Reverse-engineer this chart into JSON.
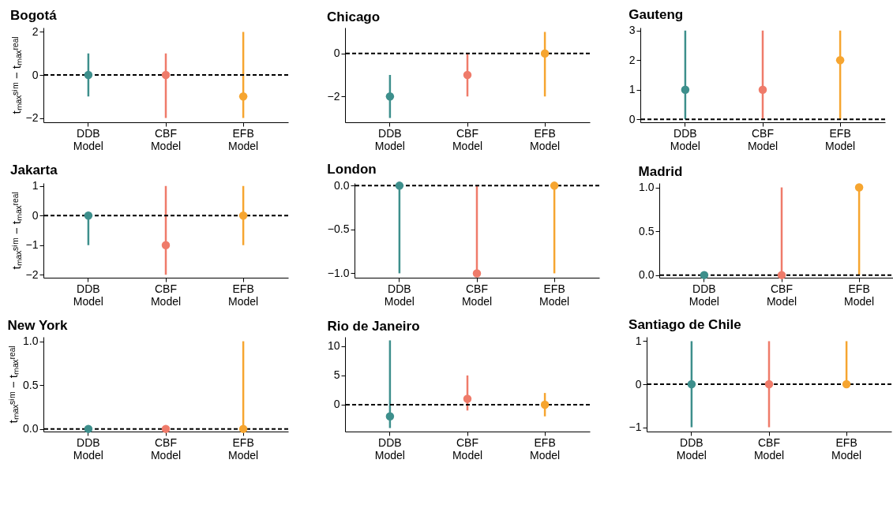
{
  "chart_data": [
    {
      "type": "scatter",
      "title": "Bogotá",
      "ylabel": "tₘₐₓˢⁱᵐ − tₘₐₓʳᵉᵃˡ",
      "categories": [
        "DDB Model",
        "CBF Model",
        "EFB Model"
      ],
      "values": [
        0,
        0,
        -1
      ],
      "errors": [
        [
          -1,
          1
        ],
        [
          -2,
          1
        ],
        [
          -2,
          2
        ]
      ],
      "colors": [
        "#3d8f8c",
        "#ef7b6a",
        "#f6a530"
      ],
      "ylim": [
        -2.2,
        2.2
      ],
      "yticks": [
        -2,
        0,
        2
      ],
      "ref_lines": [
        {
          "axis": "y",
          "value": 0,
          "line_style": "dashed",
          "color": "#000000"
        }
      ],
      "grid": false
    },
    {
      "type": "scatter",
      "title": "Chicago",
      "categories": [
        "DDB Model",
        "CBF Model",
        "EFB Model"
      ],
      "values": [
        -2,
        -1,
        0
      ],
      "errors": [
        [
          -3,
          -1
        ],
        [
          -2,
          0
        ],
        [
          -2,
          1
        ]
      ],
      "colors": [
        "#3d8f8c",
        "#ef7b6a",
        "#f6a530"
      ],
      "ylim": [
        -3.2,
        1.2
      ],
      "yticks": [
        -2,
        0
      ],
      "ref_lines": [
        {
          "axis": "y",
          "value": 0,
          "line_style": "dashed",
          "color": "#000000"
        }
      ],
      "grid": false
    },
    {
      "type": "scatter",
      "title": "Gauteng",
      "categories": [
        "DDB Model",
        "CBF Model",
        "EFB Model"
      ],
      "values": [
        1,
        1,
        2
      ],
      "errors": [
        [
          0,
          3
        ],
        [
          0,
          3
        ],
        [
          0,
          3
        ]
      ],
      "colors": [
        "#3d8f8c",
        "#ef7b6a",
        "#f6a530"
      ],
      "ylim": [
        -0.1,
        3.1
      ],
      "yticks": [
        0,
        1,
        2,
        3
      ],
      "ref_lines": [
        {
          "axis": "y",
          "value": 0,
          "line_style": "dashed",
          "color": "#000000"
        }
      ],
      "grid": false
    },
    {
      "type": "scatter",
      "title": "Jakarta",
      "ylabel": "tₘₐₓˢⁱᵐ − tₘₐₓʳᵉᵃˡ",
      "categories": [
        "DDB Model",
        "CBF Model",
        "EFB Model"
      ],
      "values": [
        0,
        -1,
        0
      ],
      "errors": [
        [
          -1,
          0
        ],
        [
          -2,
          1
        ],
        [
          -1,
          1
        ]
      ],
      "colors": [
        "#3d8f8c",
        "#ef7b6a",
        "#f6a530"
      ],
      "ylim": [
        -2.1,
        1.1
      ],
      "yticks": [
        -2,
        -1,
        0,
        1
      ],
      "ref_lines": [
        {
          "axis": "y",
          "value": 0,
          "line_style": "dashed",
          "color": "#000000"
        }
      ],
      "grid": false
    },
    {
      "type": "scatter",
      "title": "London",
      "categories": [
        "DDB Model",
        "CBF Model",
        "EFB Model"
      ],
      "values": [
        0,
        -1,
        0
      ],
      "errors": [
        [
          -1,
          0
        ],
        [
          -1,
          0
        ],
        [
          -1,
          0
        ]
      ],
      "colors": [
        "#3d8f8c",
        "#ef7b6a",
        "#f6a530"
      ],
      "ylim": [
        -1.05,
        0.03
      ],
      "yticks": [
        {
          "value": -1,
          "label": "−1.0"
        },
        {
          "value": -0.5,
          "label": "−0.5"
        },
        {
          "value": 0,
          "label": "0.0"
        }
      ],
      "ref_lines": [
        {
          "axis": "y",
          "value": 0,
          "line_style": "dashed",
          "color": "#000000"
        }
      ],
      "grid": false
    },
    {
      "type": "scatter",
      "title": "Madrid",
      "categories": [
        "DDB Model",
        "CBF Model",
        "EFB Model"
      ],
      "values": [
        0,
        0,
        1
      ],
      "errors": [
        null,
        [
          0,
          1
        ],
        [
          0,
          1
        ]
      ],
      "colors": [
        "#3d8f8c",
        "#ef7b6a",
        "#f6a530"
      ],
      "ylim": [
        -0.03,
        1.05
      ],
      "yticks": [
        {
          "value": 0,
          "label": "0.0"
        },
        {
          "value": 0.5,
          "label": "0.5"
        },
        {
          "value": 1,
          "label": "1.0"
        }
      ],
      "ref_lines": [
        {
          "axis": "y",
          "value": 0,
          "line_style": "dashed",
          "color": "#000000"
        }
      ],
      "grid": false
    },
    {
      "type": "scatter",
      "title": "New York",
      "ylabel": "tₘₐₓˢⁱᵐ − tₘₐₓʳᵉᵃˡ",
      "categories": [
        "DDB Model",
        "CBF Model",
        "EFB Model"
      ],
      "values": [
        0,
        0,
        0
      ],
      "errors": [
        null,
        null,
        [
          0,
          1
        ]
      ],
      "colors": [
        "#3d8f8c",
        "#ef7b6a",
        "#f6a530"
      ],
      "ylim": [
        -0.03,
        1.05
      ],
      "yticks": [
        {
          "value": 0,
          "label": "0.0"
        },
        {
          "value": 0.5,
          "label": "0.5"
        },
        {
          "value": 1,
          "label": "1.0"
        }
      ],
      "ref_lines": [
        {
          "axis": "y",
          "value": 0,
          "line_style": "dashed",
          "color": "#000000"
        }
      ],
      "grid": false
    },
    {
      "type": "scatter",
      "title": "Rio de Janeiro",
      "categories": [
        "DDB Model",
        "CBF Model",
        "EFB Model"
      ],
      "values": [
        -2,
        1,
        0
      ],
      "errors": [
        [
          -4,
          11
        ],
        [
          -1,
          5
        ],
        [
          -2,
          2
        ]
      ],
      "colors": [
        "#3d8f8c",
        "#ef7b6a",
        "#f6a530"
      ],
      "ylim": [
        -4.6,
        11.6
      ],
      "yticks": [
        0,
        5,
        10
      ],
      "ref_lines": [
        {
          "axis": "y",
          "value": 0,
          "line_style": "dashed",
          "color": "#000000"
        }
      ],
      "grid": false
    },
    {
      "type": "scatter",
      "title": "Santiago de Chile",
      "categories": [
        "DDB Model",
        "CBF Model",
        "EFB Model"
      ],
      "values": [
        0,
        0,
        0
      ],
      "errors": [
        [
          -1,
          1
        ],
        [
          -1,
          1
        ],
        [
          0,
          1
        ]
      ],
      "colors": [
        "#3d8f8c",
        "#ef7b6a",
        "#f6a530"
      ],
      "ylim": [
        -1.1,
        1.1
      ],
      "yticks": [
        -1,
        0,
        1
      ],
      "ref_lines": [
        {
          "axis": "y",
          "value": 0,
          "line_style": "dashed",
          "color": "#000000"
        }
      ],
      "grid": false
    }
  ]
}
